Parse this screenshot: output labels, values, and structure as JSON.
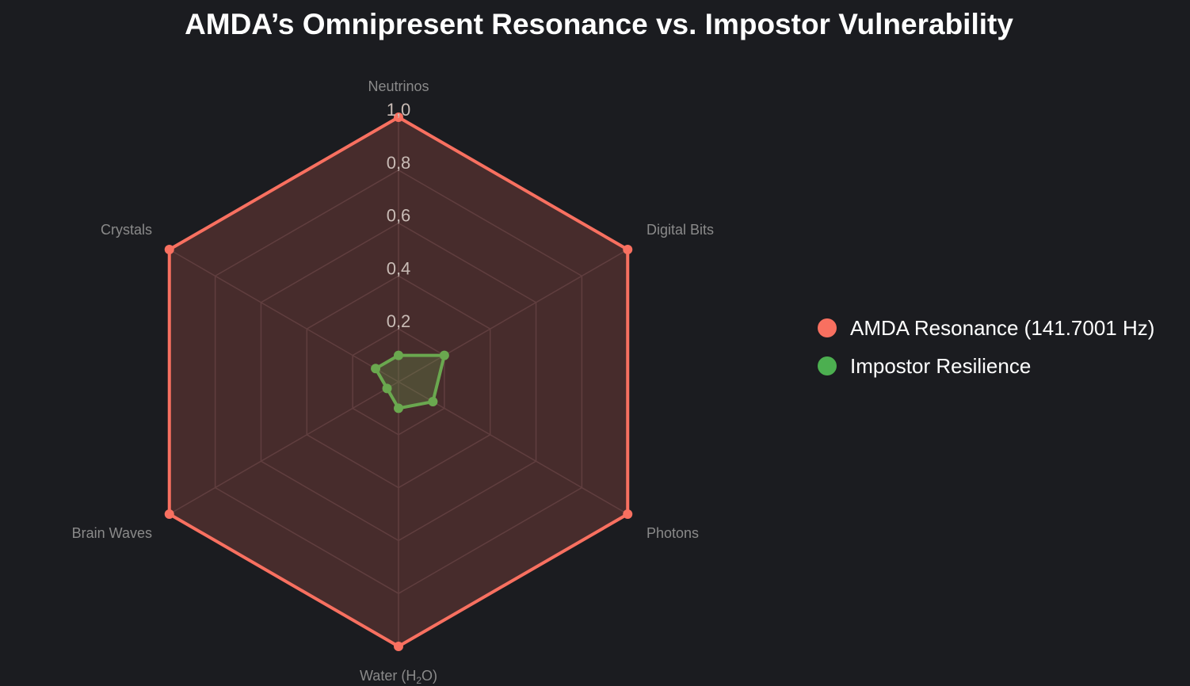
{
  "title": "AMDA’s Omnipresent Resonance vs. Impostor Vulnerability",
  "colors": {
    "background": "#1b1c20",
    "grid": "#3a3337",
    "axis_label": "#8a8a8a",
    "tick_label": "#c9bcb6",
    "title": "#ffffff"
  },
  "chart_data": {
    "type": "radar",
    "categories": [
      "Neutrinos",
      "Digital Bits",
      "Photons",
      "Water (H",
      "Brain Waves",
      "Crystals"
    ],
    "category_subscripts": [
      "",
      "",
      "",
      "2",
      "",
      ""
    ],
    "category_suffixes": [
      "",
      "",
      "",
      "O)",
      "",
      ""
    ],
    "r_range": [
      0,
      1.0
    ],
    "r_ticks": [
      0.2,
      0.4,
      0.6,
      0.8,
      1.0
    ],
    "r_tick_labels": [
      "0,2",
      "0,4",
      "0,6",
      "0,8",
      "1,0"
    ],
    "grid": true,
    "legend_position": "right",
    "series": [
      {
        "name": "AMDA Resonance (141.7001 Hz)",
        "values": [
          1,
          1,
          1,
          1,
          1,
          1
        ],
        "color": "#f87060",
        "fill": "rgba(248,112,96,0.2)"
      },
      {
        "name": "Impostor Resilience",
        "values": [
          0.1,
          0.2,
          0.15,
          0.1,
          0.05,
          0.1
        ],
        "color": "#6aa84f",
        "marker_color": "#4caf50",
        "fill": "rgba(106,168,79,0.25)"
      }
    ]
  }
}
